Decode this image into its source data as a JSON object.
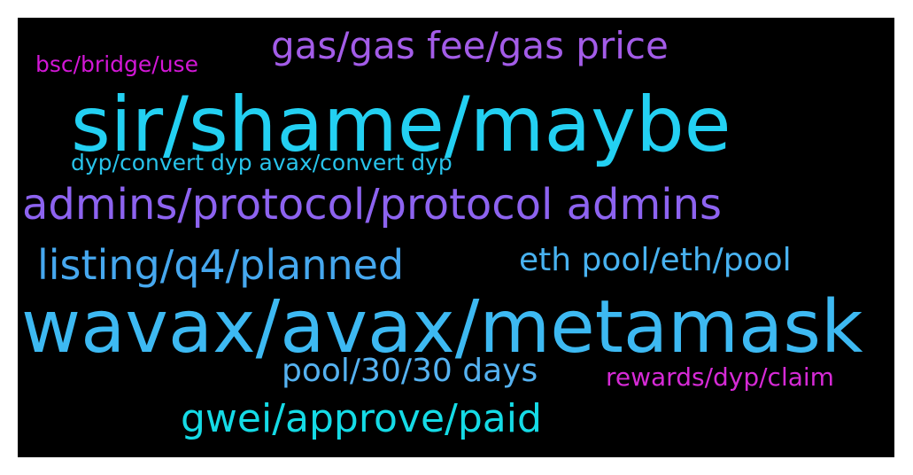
{
  "words": [
    {
      "id": "gas",
      "text": "gas/gas fee/gas price",
      "color": "#a35ce8"
    },
    {
      "id": "bsc",
      "text": "bsc/bridge/use",
      "color": "#d217d6"
    },
    {
      "id": "sir",
      "text": "sir/shame/maybe",
      "color": "#23d0f2"
    },
    {
      "id": "dyp",
      "text": "dyp/convert dyp avax/convert dyp",
      "color": "#28c3ea"
    },
    {
      "id": "admins",
      "text": "admins/protocol/protocol admins",
      "color": "#8d63f0"
    },
    {
      "id": "listing",
      "text": "listing/q4/planned",
      "color": "#46a8ef"
    },
    {
      "id": "eth",
      "text": "eth pool/eth/pool",
      "color": "#48b2f0"
    },
    {
      "id": "wavax",
      "text": "wavax/avax/metamask",
      "color": "#3db9f2"
    },
    {
      "id": "pool",
      "text": "pool/30/30 days",
      "color": "#55b2f1"
    },
    {
      "id": "rewards",
      "text": "rewards/dyp/claim",
      "color": "#d62ad6"
    },
    {
      "id": "gwei",
      "text": "gwei/approve/paid",
      "color": "#15dbe6"
    }
  ]
}
